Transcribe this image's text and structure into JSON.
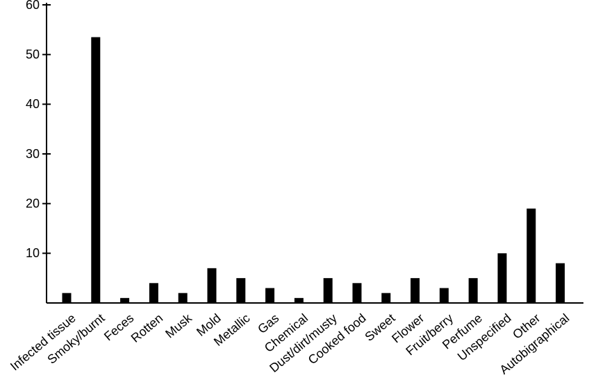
{
  "chart_data": {
    "type": "bar",
    "categories": [
      "Infected tissue",
      "Smoky/burnt",
      "Feces",
      "Rotten",
      "Musk",
      "Mold",
      "Metallic",
      "Gas",
      "Chemical",
      "Dust/dirt/musty",
      "Cooked food",
      "Sweet",
      "Flower",
      "Fruit/berry",
      "Perfume",
      "Unspecified",
      "Other",
      "Autobigraphical"
    ],
    "values": [
      2,
      53.5,
      1,
      4,
      2,
      7,
      5,
      3,
      1,
      5,
      4,
      2,
      5,
      3,
      5,
      10,
      19,
      8
    ],
    "color": "#000000",
    "ylim": [
      0,
      60
    ],
    "yticks": [
      10,
      20,
      30,
      40,
      50,
      60
    ],
    "grid": false
  }
}
